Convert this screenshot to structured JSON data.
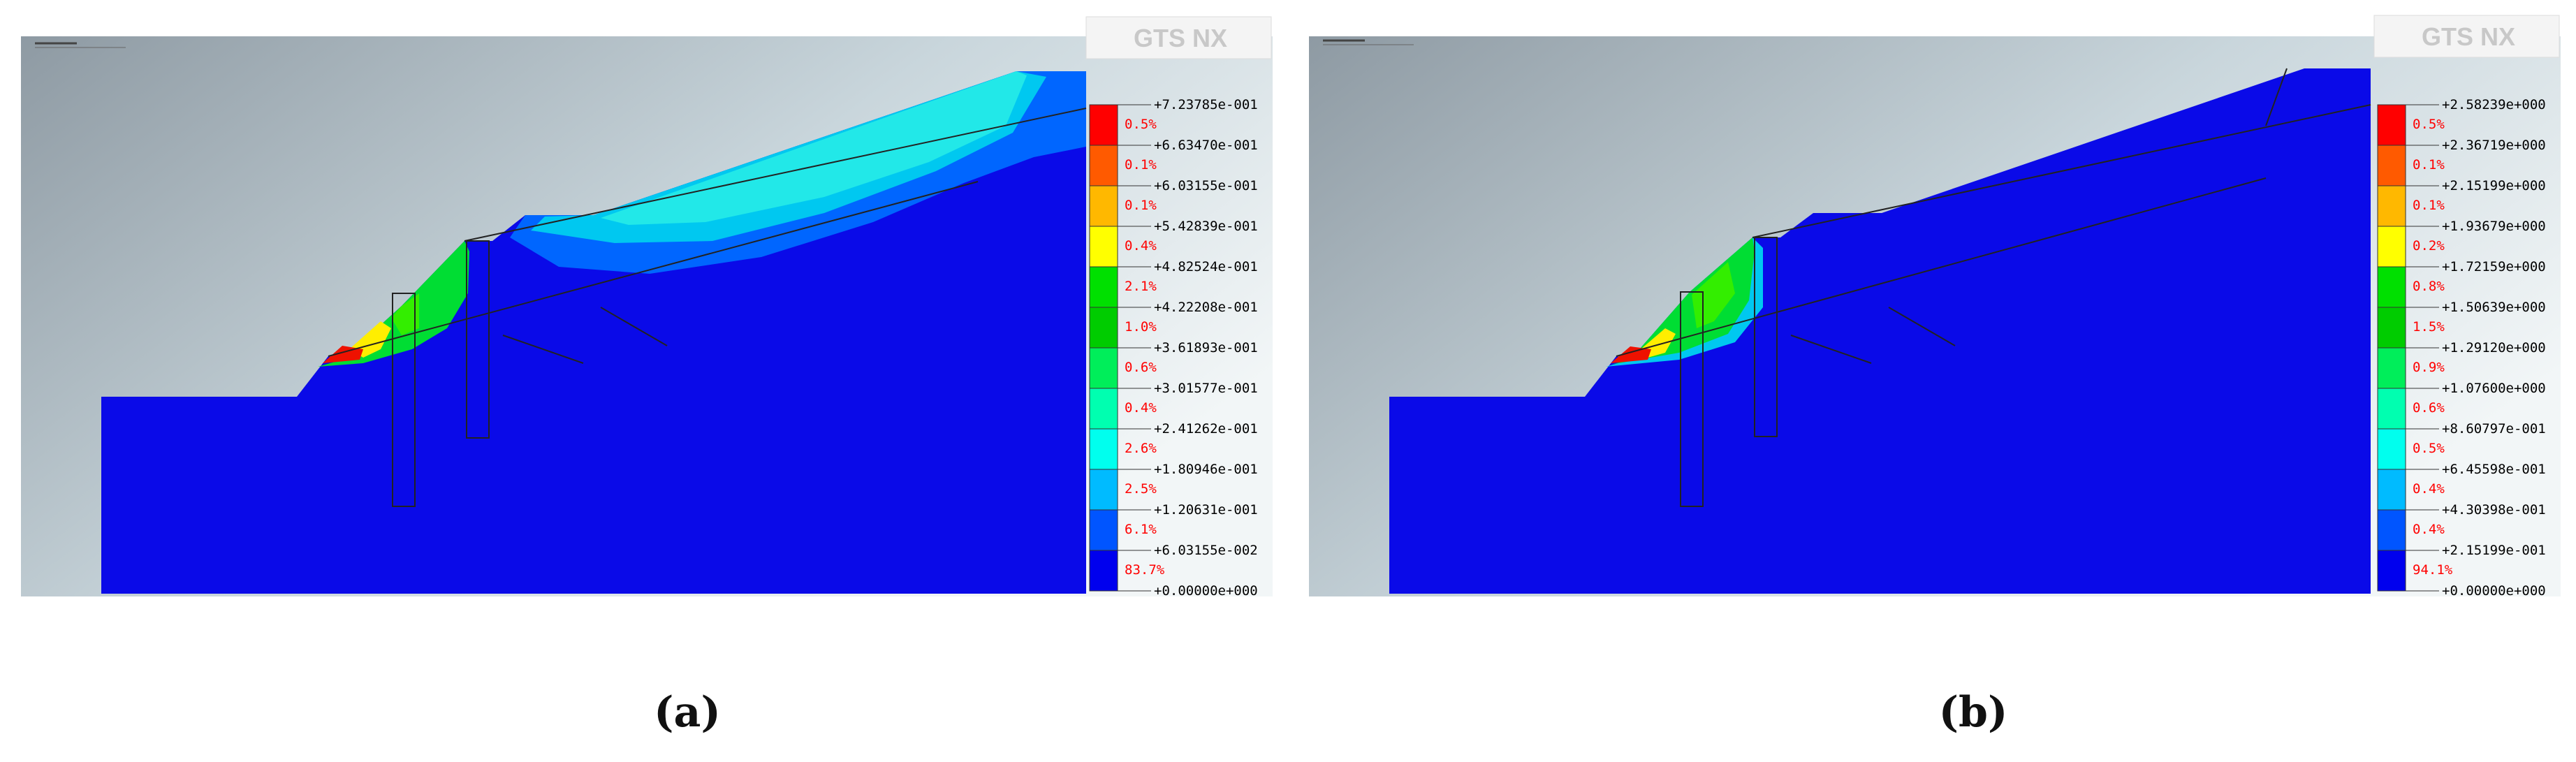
{
  "panels": [
    {
      "id": "a",
      "caption": "(a)",
      "logo": "GTS NX",
      "legend": {
        "values": [
          "+7.23785e-001",
          "+6.63470e-001",
          "+6.03155e-001",
          "+5.42839e-001",
          "+4.82524e-001",
          "+4.22208e-001",
          "+3.61893e-001",
          "+3.01577e-001",
          "+2.41262e-001",
          "+1.80946e-001",
          "+1.20631e-001",
          "+6.03155e-002",
          "+0.00000e+000"
        ],
        "percents": [
          "0.5%",
          "0.1%",
          "0.1%",
          "0.4%",
          "2.1%",
          "1.0%",
          "0.6%",
          "0.4%",
          "2.6%",
          "2.5%",
          "6.1%",
          "83.7%"
        ],
        "colors": [
          "#ff0000",
          "#ff5a00",
          "#ffb800",
          "#ffff00",
          "#00e000",
          "#00cc00",
          "#00ee5a",
          "#00ffb0",
          "#00ffee",
          "#00bbff",
          "#0055ff",
          "#0000ee"
        ]
      }
    },
    {
      "id": "b",
      "caption": "(b)",
      "logo": "GTS NX",
      "legend": {
        "values": [
          "+2.58239e+000",
          "+2.36719e+000",
          "+2.15199e+000",
          "+1.93679e+000",
          "+1.72159e+000",
          "+1.50639e+000",
          "+1.29120e+000",
          "+1.07600e+000",
          "+8.60797e-001",
          "+6.45598e-001",
          "+4.30398e-001",
          "+2.15199e-001",
          "+0.00000e+000"
        ],
        "percents": [
          "0.5%",
          "0.1%",
          "0.1%",
          "0.2%",
          "0.8%",
          "1.5%",
          "0.9%",
          "0.6%",
          "0.5%",
          "0.4%",
          "0.4%",
          "94.1%"
        ],
        "colors": [
          "#ff0000",
          "#ff5a00",
          "#ffb800",
          "#ffff00",
          "#00e000",
          "#00cc00",
          "#00ee5a",
          "#00ffb0",
          "#00ffee",
          "#00bbff",
          "#0055ff",
          "#0000ee"
        ]
      }
    }
  ]
}
